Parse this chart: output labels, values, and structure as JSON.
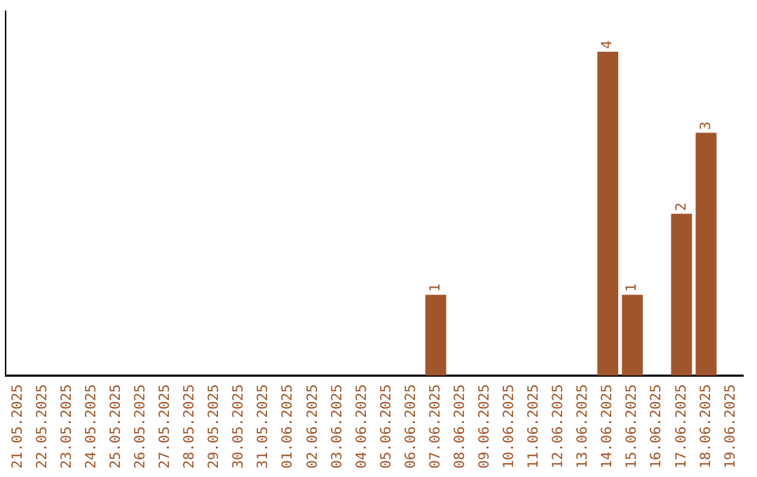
{
  "chart_data": {
    "type": "bar",
    "categories": [
      "21.05.2025",
      "22.05.2025",
      "23.05.2025",
      "24.05.2025",
      "25.05.2025",
      "26.05.2025",
      "27.05.2025",
      "28.05.2025",
      "29.05.2025",
      "30.05.2025",
      "31.05.2025",
      "01.06.2025",
      "02.06.2025",
      "03.06.2025",
      "04.06.2025",
      "05.06.2025",
      "06.06.2025",
      "07.06.2025",
      "08.06.2025",
      "09.06.2025",
      "10.06.2025",
      "11.06.2025",
      "12.06.2025",
      "13.06.2025",
      "14.06.2025",
      "15.06.2025",
      "16.06.2025",
      "17.06.2025",
      "18.06.2025",
      "19.06.2025"
    ],
    "values": [
      null,
      null,
      null,
      null,
      null,
      null,
      null,
      null,
      null,
      null,
      null,
      null,
      null,
      null,
      null,
      null,
      null,
      1,
      null,
      null,
      null,
      null,
      null,
      null,
      4,
      1,
      null,
      2,
      3,
      null
    ],
    "color": "#a0562a",
    "data_labels": true,
    "grid": false,
    "legend": false,
    "tick_labels": "x"
  }
}
